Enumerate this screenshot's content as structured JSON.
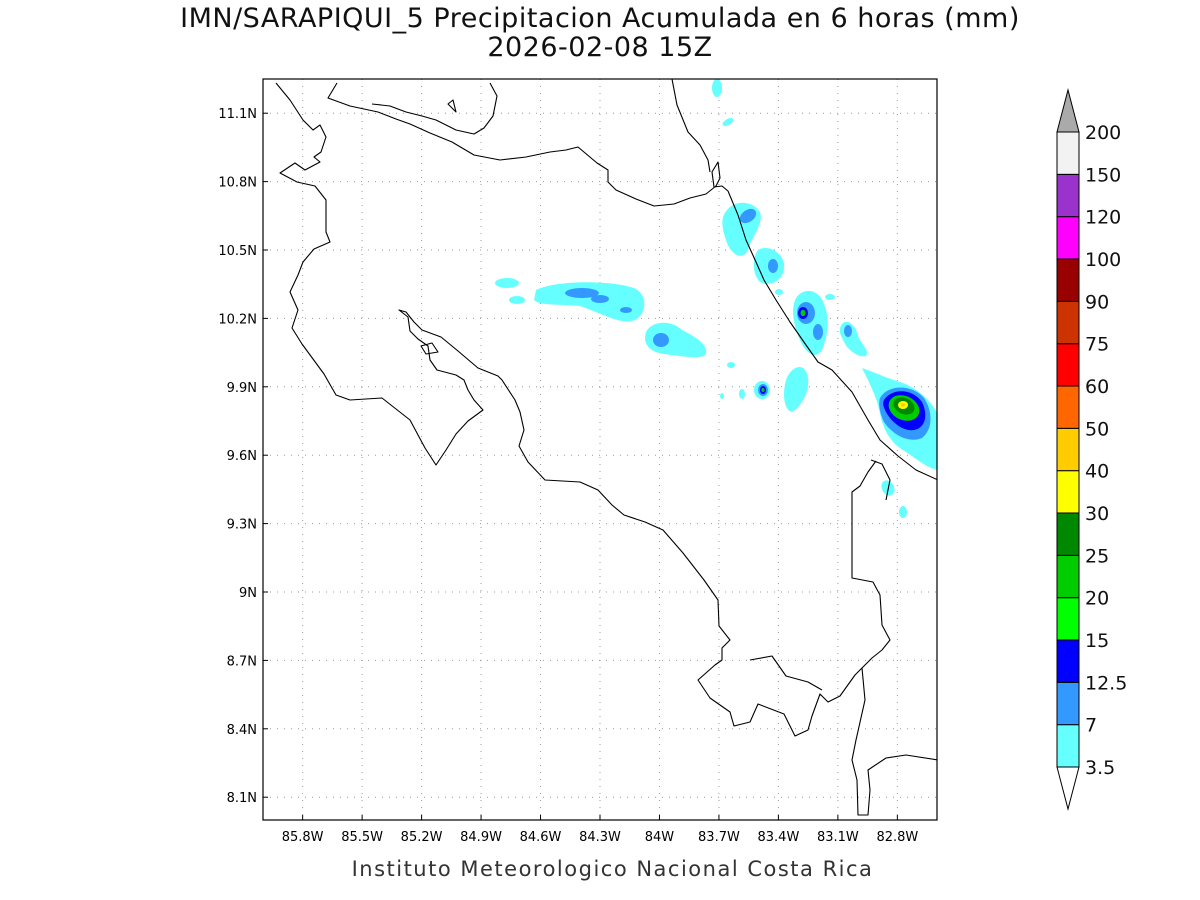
{
  "title": {
    "line1": "IMN/SARAPIQUI_5 Precipitacion Acumulada en 6 horas (mm)",
    "line2": "2026-02-08 15Z"
  },
  "footer": "Instituto Meteorologico Nacional Costa Rica",
  "map": {
    "lon_range": [
      -86.0,
      -82.6
    ],
    "lat_range": [
      8.0,
      11.25
    ],
    "lon_ticks": [
      {
        "value": -85.8,
        "label": "85.8W"
      },
      {
        "value": -85.5,
        "label": "85.5W"
      },
      {
        "value": -85.2,
        "label": "85.2W"
      },
      {
        "value": -84.9,
        "label": "84.9W"
      },
      {
        "value": -84.6,
        "label": "84.6W"
      },
      {
        "value": -84.3,
        "label": "84.3W"
      },
      {
        "value": -84.0,
        "label": "84W"
      },
      {
        "value": -83.7,
        "label": "83.7W"
      },
      {
        "value": -83.4,
        "label": "83.4W"
      },
      {
        "value": -83.1,
        "label": "83.1W"
      },
      {
        "value": -82.8,
        "label": "82.8W"
      }
    ],
    "lat_ticks": [
      {
        "value": 11.1,
        "label": "11.1N"
      },
      {
        "value": 10.8,
        "label": "10.8N"
      },
      {
        "value": 10.5,
        "label": "10.5N"
      },
      {
        "value": 10.2,
        "label": "10.2N"
      },
      {
        "value": 9.9,
        "label": "9.9N"
      },
      {
        "value": 9.6,
        "label": "9.6N"
      },
      {
        "value": 9.3,
        "label": "9.3N"
      },
      {
        "value": 9.0,
        "label": "9N"
      },
      {
        "value": 8.7,
        "label": "8.7N"
      },
      {
        "value": 8.4,
        "label": "8.4N"
      },
      {
        "value": 8.1,
        "label": "8.1N"
      }
    ],
    "grid": "dotted"
  },
  "colorbar": {
    "levels": [
      {
        "label": "3.5",
        "color": "#66ffff"
      },
      {
        "label": "7",
        "color": "#3399ff"
      },
      {
        "label": "12.5",
        "color": "#0000ff"
      },
      {
        "label": "15",
        "color": "#00ff00"
      },
      {
        "label": "20",
        "color": "#00cc00"
      },
      {
        "label": "25",
        "color": "#008800"
      },
      {
        "label": "30",
        "color": "#ffff00"
      },
      {
        "label": "40",
        "color": "#ffcc00"
      },
      {
        "label": "50",
        "color": "#ff6600"
      },
      {
        "label": "60",
        "color": "#ff0000"
      },
      {
        "label": "75",
        "color": "#cc3300"
      },
      {
        "label": "90",
        "color": "#990000"
      },
      {
        "label": "100",
        "color": "#ff00ff"
      },
      {
        "label": "120",
        "color": "#9933cc"
      },
      {
        "label": "150",
        "color": "#f2f2f2"
      },
      {
        "label": "200",
        "color": "#aaaaaa"
      }
    ]
  }
}
